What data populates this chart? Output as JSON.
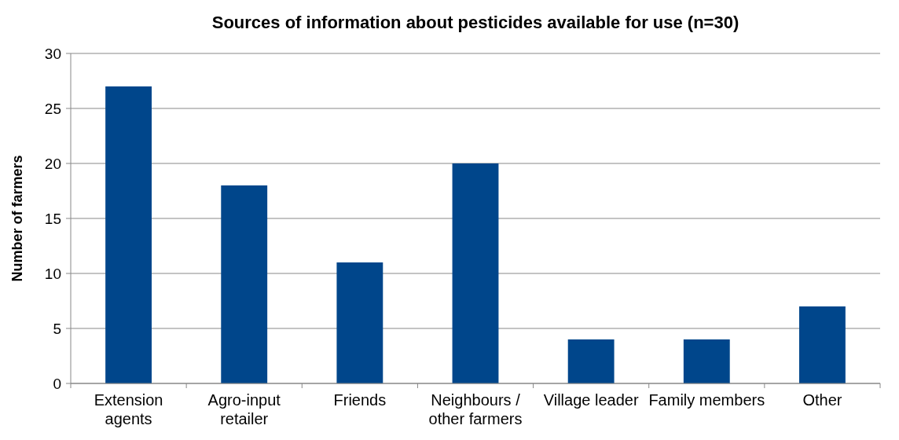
{
  "chart_data": {
    "type": "bar",
    "title": "Sources of information about pesticides available for use (n=30)",
    "ylabel": "Number of farmers",
    "categories": [
      "Extension agents",
      "Agro-input retailer",
      "Friends",
      "Neighbours / other farmers",
      "Village leader",
      "Family members",
      "Other"
    ],
    "values": [
      27,
      18,
      11,
      20,
      4,
      4,
      7
    ],
    "color": "#00468b",
    "ylim": [
      0,
      30
    ],
    "yticks": [
      0,
      5,
      10,
      15,
      20,
      25,
      30
    ],
    "grid": "y"
  }
}
